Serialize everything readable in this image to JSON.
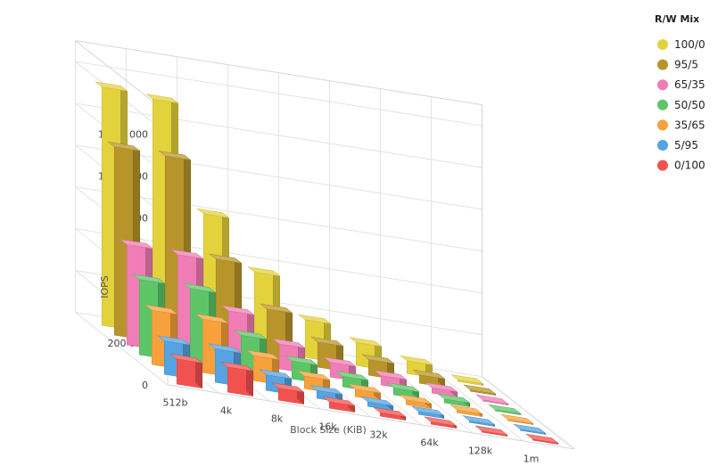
{
  "chart_data": {
    "type": "bar",
    "subtype": "3d-grouped",
    "xlabel": "Block Size (KiB)",
    "ylabel": "IOPS",
    "ylim": [
      0,
      1300000
    ],
    "yticks": [
      0,
      200000,
      400000,
      600000,
      800000,
      1000000,
      1200000
    ],
    "ytick_labels": [
      "0",
      "200 000",
      "400 000",
      "600 000",
      "800 000",
      "1 000 000",
      "1 200 000"
    ],
    "categories": [
      "512b",
      "4k",
      "8k",
      "16k",
      "32k",
      "64k",
      "128k",
      "1m"
    ],
    "grid": true,
    "legend": {
      "title": "R/W Mix",
      "placement": "top-right"
    },
    "series": [
      {
        "name": "100/0",
        "color": "#e4d23c",
        "values": [
          1140000,
          1120000,
          610000,
          370000,
          180000,
          110000,
          60000,
          8000
        ]
      },
      {
        "name": "95/5",
        "color": "#b8952a",
        "values": [
          900000,
          895000,
          440000,
          240000,
          120000,
          75000,
          40000,
          6000
        ]
      },
      {
        "name": "65/35",
        "color": "#f07db5",
        "values": [
          480000,
          470000,
          240000,
          120000,
          70000,
          45000,
          25000,
          4000
        ]
      },
      {
        "name": "50/50",
        "color": "#5dc567",
        "values": [
          360000,
          355000,
          170000,
          85000,
          50000,
          33000,
          18000,
          3000
        ]
      },
      {
        "name": "35/65",
        "color": "#f7a13c",
        "values": [
          260000,
          255000,
          120000,
          60000,
          36000,
          23000,
          13000,
          2000
        ]
      },
      {
        "name": "5/95",
        "color": "#55a3e0",
        "values": [
          160000,
          160000,
          75000,
          38000,
          22000,
          14000,
          8000,
          1500
        ]
      },
      {
        "name": "0/100",
        "color": "#f2524f",
        "values": [
          120000,
          120000,
          58000,
          30000,
          17000,
          11000,
          6000,
          1000
        ]
      }
    ]
  }
}
